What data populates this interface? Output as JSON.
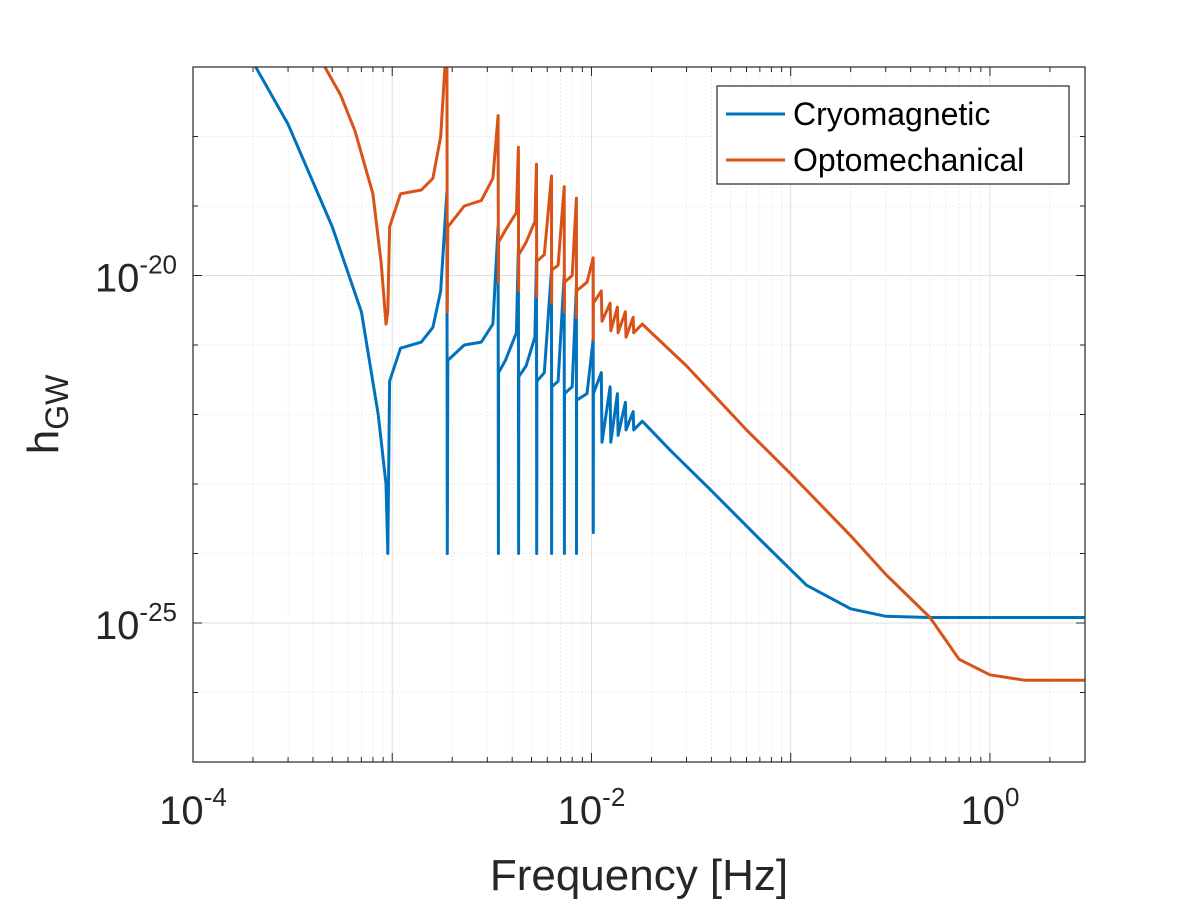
{
  "chart_data": {
    "type": "line",
    "x_scale": "log",
    "y_scale": "log",
    "xlim": [
      0.0001,
      3.0
    ],
    "ylim": [
      1e-27,
      1e-17
    ],
    "xlabel": "Frequency [Hz]",
    "ylabel": "h",
    "ylabel_subscript": "GW",
    "grid": true,
    "minor_grid": true,
    "legend_position": "top-right",
    "x_ticks": [
      {
        "value": 0.0001,
        "base": "10",
        "exp": "-4"
      },
      {
        "value": 0.01,
        "base": "10",
        "exp": "-2"
      },
      {
        "value": 1,
        "base": "10",
        "exp": "0"
      }
    ],
    "y_ticks": [
      {
        "value": 1e-25,
        "base": "10",
        "exp": "-25"
      },
      {
        "value": 1e-20,
        "base": "10",
        "exp": "-20"
      }
    ],
    "series": [
      {
        "name": "Cryomagnetic",
        "color": "#0072BD",
        "x": [
          0.00018,
          0.0003,
          0.0005,
          0.0007,
          0.00085,
          0.00093,
          0.00095,
          0.00097,
          0.0011,
          0.0014,
          0.0016,
          0.00175,
          0.00188,
          0.00189,
          0.0019,
          0.0023,
          0.0028,
          0.0032,
          0.0034,
          0.00341,
          0.00342,
          0.0037,
          0.0042,
          0.0043,
          0.00431,
          0.00432,
          0.0047,
          0.0052,
          0.0053,
          0.00531,
          0.00532,
          0.0058,
          0.0063,
          0.00631,
          0.00632,
          0.0068,
          0.0073,
          0.00731,
          0.00732,
          0.008,
          0.0084,
          0.00841,
          0.00842,
          0.0095,
          0.0102,
          0.01021,
          0.01022,
          0.0112,
          0.0113,
          0.0124,
          0.0125,
          0.0135,
          0.0136,
          0.0148,
          0.0149,
          0.0162,
          0.0163,
          0.018,
          0.025,
          0.04,
          0.07,
          0.12,
          0.2,
          0.3,
          0.5,
          1,
          3
        ],
        "y": [
          2e-17,
          1.5e-18,
          5e-20,
          3e-21,
          1e-22,
          1e-23,
          1e-24,
          3e-22,
          9e-22,
          1.1e-21,
          1.8e-21,
          6e-21,
          1.6e-19,
          1e-24,
          6e-22,
          1e-21,
          1.1e-21,
          2e-21,
          5e-20,
          1e-24,
          4e-22,
          6e-22,
          1.5e-21,
          2.5e-20,
          1e-24,
          3.5e-22,
          5e-22,
          1.3e-21,
          1.8e-20,
          1e-24,
          3e-22,
          4e-22,
          1.2e-20,
          1e-24,
          2.5e-22,
          3e-22,
          1e-20,
          1e-24,
          2e-22,
          2.5e-22,
          7e-21,
          1e-24,
          1.6e-22,
          2e-22,
          1.2e-21,
          2e-24,
          2e-22,
          4e-22,
          4e-23,
          2.5e-22,
          4e-23,
          2e-22,
          5e-23,
          1.5e-22,
          6e-23,
          1.1e-22,
          6e-23,
          8e-23,
          3e-23,
          8e-24,
          1.6e-24,
          3.5e-25,
          1.6e-25,
          1.25e-25,
          1.2e-25,
          1.2e-25,
          1.2e-25
        ]
      },
      {
        "name": "Optomechanical",
        "color": "#D95319",
        "x": [
          0.0004,
          0.00055,
          0.00065,
          0.0008,
          0.00088,
          0.00093,
          0.00095,
          0.00097,
          0.0011,
          0.0014,
          0.0016,
          0.00175,
          0.00188,
          0.00189,
          0.0019,
          0.0023,
          0.0028,
          0.0032,
          0.0034,
          0.00341,
          0.00342,
          0.0037,
          0.0042,
          0.0043,
          0.00431,
          0.00432,
          0.0047,
          0.0052,
          0.0053,
          0.00531,
          0.00532,
          0.0058,
          0.0063,
          0.00631,
          0.00632,
          0.0068,
          0.0073,
          0.00731,
          0.00732,
          0.008,
          0.0084,
          0.00841,
          0.00842,
          0.0095,
          0.0102,
          0.01021,
          0.01022,
          0.0112,
          0.0113,
          0.0124,
          0.0125,
          0.0135,
          0.0136,
          0.0148,
          0.0149,
          0.0162,
          0.0163,
          0.018,
          0.03,
          0.06,
          0.1,
          0.2,
          0.3,
          0.5,
          0.7,
          1,
          1.5,
          3
        ],
        "y": [
          2e-17,
          4e-18,
          1.2e-18,
          1.5e-19,
          1.5e-20,
          2e-21,
          3e-21,
          5e-20,
          1.5e-19,
          1.7e-19,
          2.5e-19,
          1e-18,
          3e-17,
          3e-21,
          5e-20,
          1e-19,
          1.2e-19,
          2.5e-19,
          2e-18,
          8e-21,
          3e-20,
          4.5e-20,
          8e-20,
          7e-19,
          6e-21,
          2e-20,
          3e-20,
          6e-20,
          4e-19,
          5e-21,
          1.6e-20,
          2e-20,
          2.7e-19,
          4e-21,
          1.2e-20,
          1.4e-20,
          1.9e-19,
          3e-21,
          8e-21,
          1e-20,
          1.3e-19,
          2.5e-21,
          6e-21,
          8e-21,
          1.8e-20,
          1.2e-21,
          4e-21,
          6e-21,
          2.2e-21,
          4e-21,
          1.6e-21,
          3.5e-21,
          1.5e-21,
          3e-21,
          1.3e-21,
          2.5e-21,
          1.5e-21,
          2e-21,
          5e-22,
          6e-23,
          1.4e-23,
          1.8e-24,
          5e-25,
          1.2e-25,
          3e-26,
          1.8e-26,
          1.5e-26,
          1.5e-26
        ]
      }
    ]
  }
}
